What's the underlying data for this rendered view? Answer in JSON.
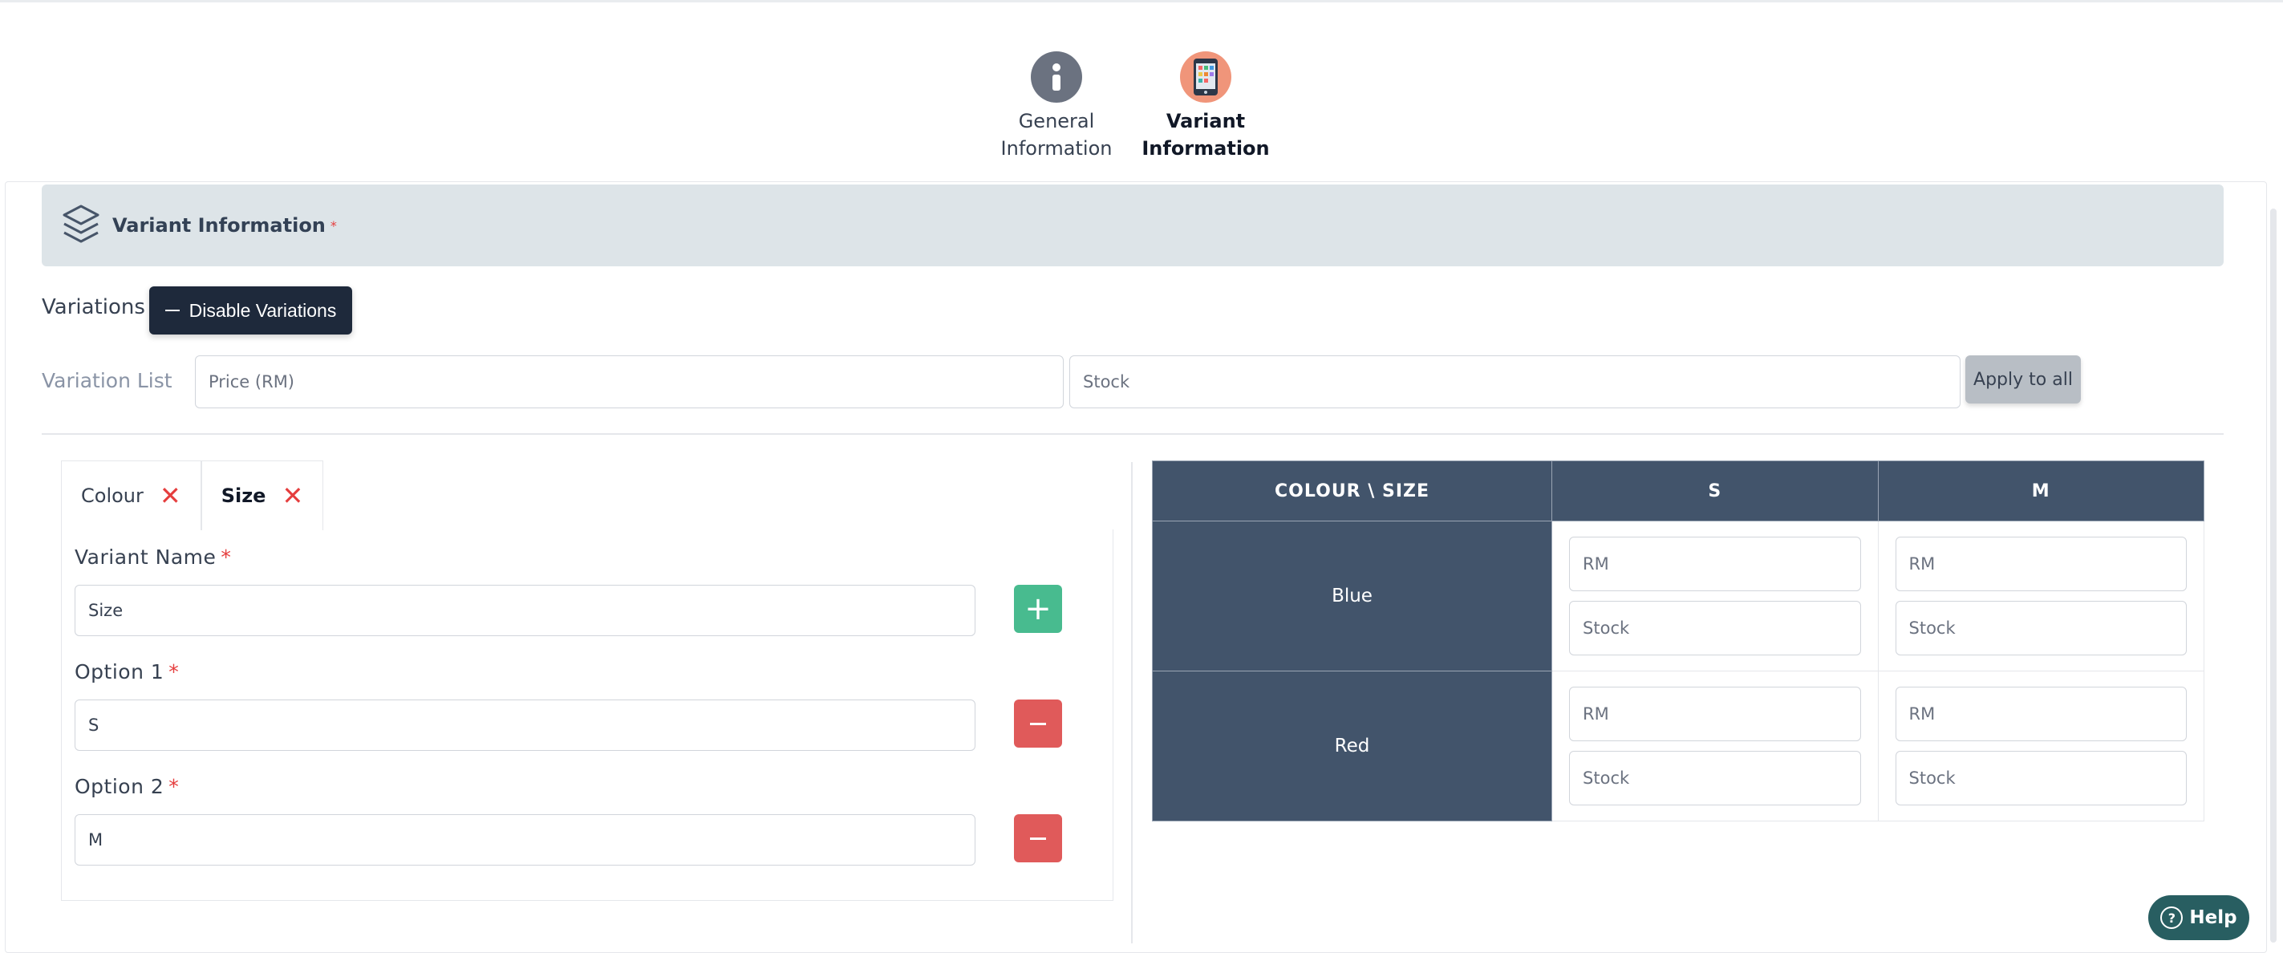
{
  "steps": [
    {
      "label_line1": "General",
      "label_line2": "Information",
      "icon": "info-icon",
      "color": "#6b7280",
      "active": false
    },
    {
      "label_line1": "Variant",
      "label_line2": "Information",
      "icon": "phone-icon",
      "color": "#f0957a",
      "active": true
    }
  ],
  "section": {
    "title": "Variant Information",
    "required_mark": "*",
    "icon": "layers-icon"
  },
  "variations": {
    "label": "Variations",
    "disable_button": "Disable Variations",
    "disable_icon": "minus-icon"
  },
  "variation_list": {
    "label": "Variation List",
    "price_placeholder": "Price (RM)",
    "stock_placeholder": "Stock",
    "apply_button": "Apply to all"
  },
  "tabs": [
    {
      "label": "Colour",
      "close_icon": "close-icon",
      "active": false
    },
    {
      "label": "Size",
      "close_icon": "close-icon",
      "active": true
    }
  ],
  "variant_form": {
    "name_label": "Variant Name",
    "name_value": "Size",
    "options": [
      {
        "label": "Option 1",
        "value": "S"
      },
      {
        "label": "Option 2",
        "value": "M"
      }
    ],
    "required_mark": "*",
    "add_icon": "plus-icon",
    "remove_icon": "minus-icon"
  },
  "matrix": {
    "corner": "COLOUR \\ SIZE",
    "columns": [
      "S",
      "M"
    ],
    "rows": [
      "Blue",
      "Red"
    ],
    "price_placeholder": "RM",
    "stock_placeholder": "Stock"
  },
  "help": {
    "label": "Help",
    "icon": "question-circle-icon"
  },
  "colors": {
    "header_dark": "#42546b",
    "add_green": "#48bb8f",
    "remove_red": "#e05a5a",
    "help_teal": "#285e61",
    "section_bg": "#dde4e8"
  }
}
